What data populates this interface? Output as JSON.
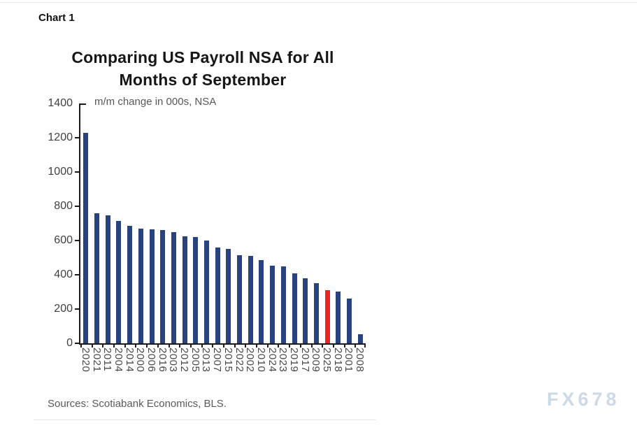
{
  "header": {
    "chart_label": "Chart 1"
  },
  "chart": {
    "title_line1": "Comparing US Payroll NSA for All",
    "title_line2": "Months of September",
    "subtitle": "m/m change in 000s, NSA"
  },
  "chart_data": {
    "type": "bar",
    "title": "Comparing US Payroll NSA for All Months of September",
    "subtitle": "m/m change in 000s, NSA",
    "categories": [
      "2020",
      "2021",
      "2011",
      "2004",
      "2014",
      "2000",
      "2006",
      "2016",
      "2003",
      "2012",
      "2005",
      "2013",
      "2007",
      "2015",
      "2022",
      "2002",
      "2010",
      "2024",
      "2023",
      "2019",
      "2017",
      "2009",
      "2025",
      "2018",
      "2001",
      "2008"
    ],
    "values": [
      1230,
      760,
      748,
      713,
      685,
      668,
      665,
      660,
      648,
      624,
      622,
      600,
      558,
      552,
      515,
      510,
      487,
      455,
      450,
      410,
      380,
      350,
      312,
      302,
      260,
      55
    ],
    "xlabel": "",
    "ylabel": "m/m change in 000s, NSA",
    "ylim": [
      0,
      1400
    ],
    "yticks": [
      1400,
      1200,
      1000,
      800,
      600,
      400,
      200,
      0
    ],
    "grid": false,
    "legend": false,
    "bar_color": "#28427e",
    "highlight": {
      "category": "2025",
      "color": "#ed2224"
    },
    "sorted": "descending by value"
  },
  "footer": {
    "sources": "Sources: Scotiabank Economics, BLS.",
    "watermark": "FX678"
  }
}
